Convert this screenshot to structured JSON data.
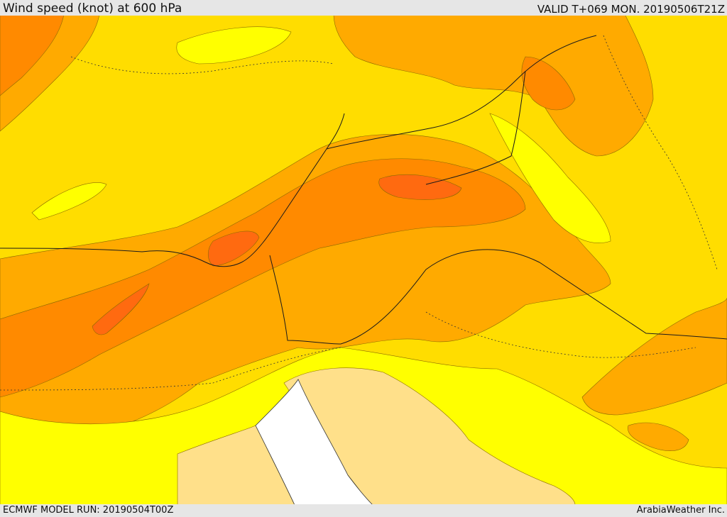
{
  "header": {
    "title": "Wind speed (knot) at 600 hPa",
    "valid": "VALID T+069 MON. 20190506T21Z"
  },
  "footer": {
    "model_run": "ECMWF MODEL RUN: 20190504T00Z",
    "credit": "ArabiaWeather Inc."
  },
  "map": {
    "shading_colors": [
      "#ffe08a",
      "#ffff00",
      "#ffdd00",
      "#ffaa00",
      "#ff8a00",
      "#ff6a10"
    ]
  }
}
